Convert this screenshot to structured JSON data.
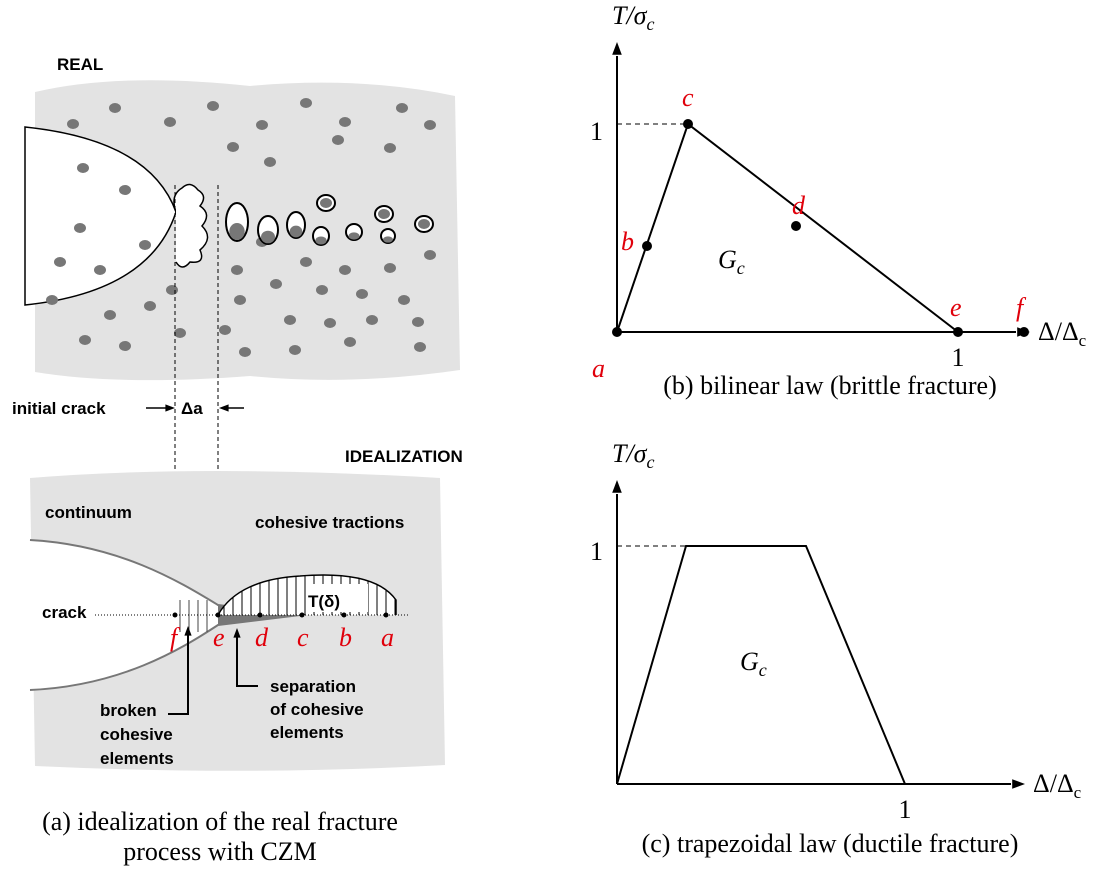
{
  "panel_a": {
    "real_label": "REAL",
    "initial_crack": "initial crack",
    "delta_a": "Δa",
    "idealization_label": "IDEALIZATION",
    "continuum": "continuum",
    "cohesive_tractions": "cohesive tractions",
    "traction": "T(δ)",
    "crack": "crack",
    "points": [
      "f",
      "e",
      "d",
      "c",
      "b",
      "a"
    ],
    "separation": [
      "separation",
      "of cohesive",
      "elements"
    ],
    "broken": [
      "broken",
      "cohesive",
      "elements"
    ],
    "caption": [
      "(a) idealization of the real fracture",
      "process with CZM"
    ]
  },
  "panel_b": {
    "y_axis": {
      "text": "T/σ",
      "subscript": "c"
    },
    "x_axis": {
      "text": "Δ/Δ",
      "subscript": "c"
    },
    "y_tick": "1",
    "x_tick": "1",
    "points": [
      "a",
      "b",
      "c",
      "d",
      "e",
      "f"
    ],
    "area": {
      "text": "G",
      "subscript": "c"
    },
    "caption": "(b) bilinear law (brittle fracture)"
  },
  "panel_c": {
    "y_axis": {
      "text": "T/σ",
      "subscript": "c"
    },
    "x_axis": {
      "text": "Δ/Δ",
      "subscript": "c"
    },
    "y_tick": "1",
    "x_tick": "1",
    "area": {
      "text": "G",
      "subscript": "c"
    },
    "caption": "(c) trapezoidal law (ductile fracture)"
  }
}
